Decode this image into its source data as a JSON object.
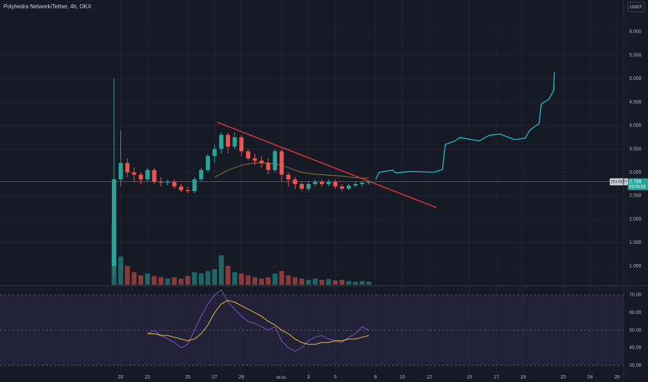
{
  "chart_data": [
    {
      "type": "candlestick",
      "title": "Polyhedra Network/Tether, 4h, OKX",
      "currency": "USDT",
      "symbol": "ZKUSDT",
      "last_price": 2.799,
      "countdown": "03:05:53",
      "up_color": "#26a69a",
      "down_color": "#ef5350",
      "x": [
        -0.5,
        0,
        0.5,
        1,
        1.5,
        2,
        2.5,
        3,
        3.5,
        4,
        4.5,
        5,
        5.5,
        6,
        6.5,
        7,
        7.5,
        8,
        8.5,
        9,
        9.5,
        10,
        10.5,
        11,
        11.5,
        12,
        12.5,
        13,
        13.5,
        14,
        14.5,
        15,
        15.5,
        16,
        16.5,
        17,
        17.5,
        18,
        18.5
      ],
      "open": [
        1.0,
        2.85,
        3.2,
        3.0,
        2.95,
        2.85,
        3.05,
        2.8,
        2.78,
        2.8,
        2.7,
        2.62,
        2.6,
        2.85,
        3.05,
        3.35,
        3.5,
        3.8,
        3.55,
        3.75,
        3.45,
        3.3,
        3.25,
        3.2,
        3.05,
        3.45,
        2.95,
        2.85,
        2.75,
        2.65,
        2.75,
        2.8,
        2.75,
        2.8,
        2.7,
        2.65,
        2.72,
        2.75,
        2.78
      ],
      "high": [
        5.0,
        3.9,
        3.3,
        3.1,
        3.0,
        3.1,
        3.1,
        2.9,
        2.85,
        2.85,
        2.75,
        2.7,
        2.9,
        3.1,
        3.4,
        3.6,
        3.85,
        3.85,
        3.85,
        3.8,
        3.5,
        3.4,
        3.35,
        3.3,
        3.5,
        3.5,
        3.0,
        2.9,
        2.8,
        2.8,
        2.85,
        2.85,
        2.85,
        2.85,
        2.75,
        2.75,
        2.8,
        2.82,
        2.83
      ],
      "low": [
        0.8,
        2.7,
        2.9,
        2.8,
        2.75,
        2.8,
        2.75,
        2.7,
        2.72,
        2.65,
        2.58,
        2.55,
        2.55,
        2.8,
        3.0,
        3.2,
        3.4,
        3.4,
        3.5,
        3.35,
        3.25,
        3.15,
        3.1,
        2.95,
        3.0,
        2.8,
        2.7,
        2.65,
        2.6,
        2.6,
        2.7,
        2.7,
        2.7,
        2.65,
        2.6,
        2.62,
        2.68,
        2.7,
        2.75
      ],
      "close": [
        2.85,
        3.2,
        3.0,
        2.95,
        2.85,
        3.05,
        2.8,
        2.78,
        2.8,
        2.7,
        2.62,
        2.6,
        2.85,
        3.05,
        3.35,
        3.5,
        3.8,
        3.55,
        3.75,
        3.45,
        3.3,
        3.25,
        3.2,
        3.05,
        3.45,
        2.95,
        2.85,
        2.75,
        2.65,
        2.75,
        2.8,
        2.75,
        2.8,
        2.7,
        2.65,
        2.72,
        2.75,
        2.78,
        2.8
      ],
      "volume": [
        100,
        45,
        30,
        20,
        15,
        18,
        14,
        12,
        10,
        12,
        10,
        14,
        20,
        18,
        22,
        25,
        47,
        30,
        20,
        18,
        15,
        12,
        10,
        12,
        18,
        22,
        15,
        12,
        10,
        8,
        10,
        8,
        9,
        7,
        8,
        6,
        5,
        6,
        5
      ],
      "ma": {
        "color": "#8a7a3a",
        "values": [
          null,
          null,
          null,
          null,
          null,
          null,
          null,
          null,
          null,
          null,
          null,
          null,
          null,
          null,
          null,
          2.9,
          2.97,
          3.05,
          3.1,
          3.15,
          3.18,
          3.2,
          3.2,
          3.2,
          3.18,
          3.15,
          3.1,
          3.05,
          3.0,
          2.98,
          2.96,
          2.95,
          2.94,
          2.93,
          2.92,
          2.9,
          2.89,
          2.88,
          2.88
        ]
      },
      "drawings": [
        {
          "color": "#f23645",
          "x": [
            7.2,
            23.52
          ],
          "y": [
            4.07,
            2.25
          ]
        },
        {
          "color": "#22b5c8",
          "x": [
            19.02,
            19.27,
            20.26,
            20.52,
            21.55,
            23.37,
            23.99,
            24.2,
            24.92,
            25.28,
            26.74,
            27.46,
            28.29,
            29.33,
            30.16,
            30.52,
            31.19,
            31.35,
            31.92,
            32.28,
            32.33
          ],
          "y": [
            2.855,
            3.003,
            3.047,
            2.988,
            3.018,
            3.003,
            3.062,
            3.596,
            3.671,
            3.745,
            3.671,
            3.789,
            3.819,
            3.7,
            3.73,
            3.908,
            4.042,
            4.457,
            4.561,
            4.754,
            5.139
          ]
        }
      ],
      "xlim": [
        -9,
        37.5
      ],
      "xticks": [
        {
          "value": 0,
          "label": "20"
        },
        {
          "value": 2,
          "label": "22"
        },
        {
          "value": 5,
          "label": "25"
        },
        {
          "value": 7,
          "label": "27"
        },
        {
          "value": 9,
          "label": "29"
        },
        {
          "value": 12,
          "label": "ш.ш."
        },
        {
          "value": 14,
          "label": "3"
        },
        {
          "value": 16,
          "label": "5"
        },
        {
          "value": 19,
          "label": "8"
        },
        {
          "value": 21,
          "label": "10"
        },
        {
          "value": 23,
          "label": "12"
        },
        {
          "value": 26,
          "label": "15"
        },
        {
          "value": 28,
          "label": "17"
        },
        {
          "value": 30,
          "label": "19"
        },
        {
          "value": 33,
          "label": "22"
        },
        {
          "value": 35,
          "label": "24"
        },
        {
          "value": 37,
          "label": "26"
        }
      ],
      "ylim": [
        0.6,
        6.68
      ],
      "yticks": [
        {
          "value": 1,
          "label": "1.000"
        },
        {
          "value": 1.5,
          "label": "1.500"
        },
        {
          "value": 2,
          "label": "2.000"
        },
        {
          "value": 2.5,
          "label": "2.500"
        },
        {
          "value": 3,
          "label": "3.000"
        },
        {
          "value": 3.5,
          "label": "3.500"
        },
        {
          "value": 4,
          "label": "4.000"
        },
        {
          "value": 4.5,
          "label": "4.500"
        },
        {
          "value": 5,
          "label": "5.000"
        },
        {
          "value": 5.5,
          "label": "5.500"
        },
        {
          "value": 6,
          "label": "6.000"
        }
      ],
      "grid": true
    },
    {
      "type": "line",
      "x": [
        -0.5,
        0,
        0.5,
        1,
        1.5,
        2,
        2.5,
        3,
        3.5,
        4,
        4.5,
        5,
        5.5,
        6,
        6.5,
        7,
        7.5,
        8,
        8.5,
        9,
        9.5,
        10,
        10.5,
        11,
        11.5,
        12,
        12.5,
        13,
        13.5,
        14,
        14.5,
        15,
        15.5,
        16,
        16.5,
        17,
        17.5,
        18,
        18.5
      ],
      "series": [
        {
          "color": "#7e57c2",
          "values": [
            null,
            null,
            null,
            null,
            null,
            48,
            50,
            47,
            45,
            43,
            40,
            42,
            50,
            58,
            65,
            70,
            73,
            66,
            62,
            58,
            55,
            54,
            52,
            50,
            52,
            44,
            40,
            38,
            40,
            44,
            46,
            47,
            45,
            44,
            43,
            46,
            48,
            52,
            50
          ]
        },
        {
          "color": "#e6c84a",
          "values": [
            null,
            null,
            null,
            null,
            null,
            48,
            48,
            47,
            47,
            46,
            45,
            44,
            45,
            48,
            53,
            60,
            65,
            67,
            66,
            64,
            62,
            60,
            58,
            55,
            53,
            50,
            48,
            45,
            43,
            42,
            42,
            43,
            43,
            44,
            44,
            45,
            45,
            46,
            47
          ]
        }
      ],
      "band_color": "#7e57c2",
      "xlim": [
        -9,
        37.5
      ],
      "ylim": [
        22.5,
        74.7
      ],
      "yticks": [
        {
          "value": 70,
          "label": "70.00"
        },
        {
          "value": 60,
          "label": "60.00"
        },
        {
          "value": 50,
          "label": "50.00"
        },
        {
          "value": 40,
          "label": "40.00"
        },
        {
          "value": 30,
          "label": "30.00"
        }
      ]
    }
  ]
}
